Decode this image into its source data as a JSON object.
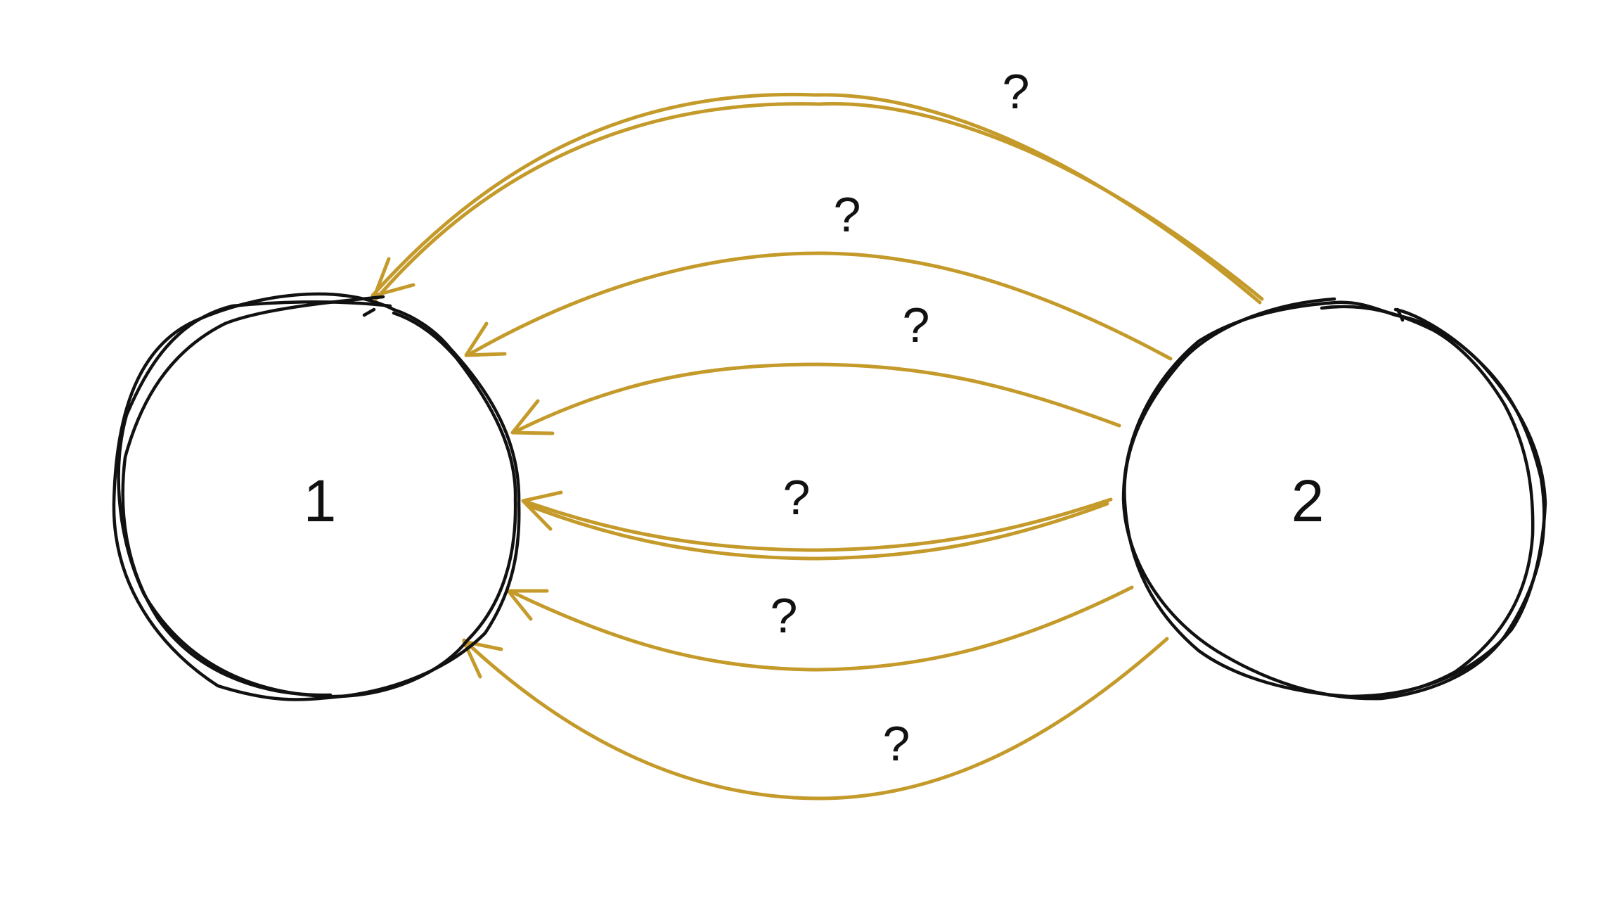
{
  "colors": {
    "node_stroke": "#111111",
    "edge_stroke": "#c49a2a",
    "label_text": "#111111",
    "background": "#ffffff"
  },
  "nodes": [
    {
      "id": "1",
      "label": "1"
    },
    {
      "id": "2",
      "label": "2"
    }
  ],
  "edges": [
    {
      "from": "2",
      "to": "1",
      "label": "?"
    },
    {
      "from": "2",
      "to": "1",
      "label": "?"
    },
    {
      "from": "2",
      "to": "1",
      "label": "?"
    },
    {
      "from": "2",
      "to": "1",
      "label": "?"
    },
    {
      "from": "2",
      "to": "1",
      "label": "?"
    },
    {
      "from": "2",
      "to": "1",
      "label": "?"
    }
  ]
}
